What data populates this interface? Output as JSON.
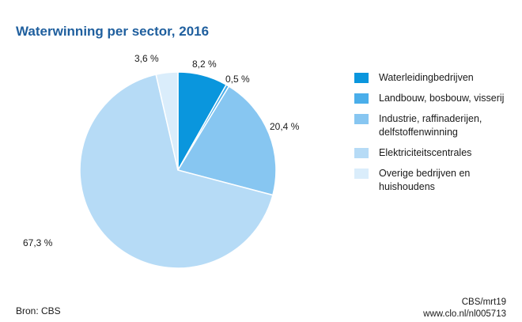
{
  "chart_data": {
    "type": "pie",
    "title": "Waterwinning per sector, 2016",
    "categories": [
      "Waterleidingbedrijven",
      "Landbouw, bosbouw, visserij",
      "Industrie, raffinaderijen, delfstoffenwinning",
      "Elektriciteitscentrales",
      "Overige bedrijven en huishoudens"
    ],
    "values": [
      8.2,
      0.5,
      20.4,
      67.3,
      3.6
    ],
    "value_labels": [
      "8,2 %",
      "0,5 %",
      "20,4 %",
      "67,3 %",
      "3,6 %"
    ],
    "colors": [
      "#0a96dd",
      "#4aaeea",
      "#87c6f1",
      "#b6dbf6",
      "#daedfb"
    ],
    "legend_placement": "right",
    "legend": [
      {
        "lines": [
          "Waterleidingbedrijven"
        ],
        "color": "#0a96dd"
      },
      {
        "lines": [
          "Landbouw, bosbouw, visserij"
        ],
        "color": "#4aaeea"
      },
      {
        "lines": [
          "Industrie, raffinaderijen,",
          "delfstoffenwinning"
        ],
        "color": "#87c6f1"
      },
      {
        "lines": [
          "Elektriciteitscentrales"
        ],
        "color": "#b6dbf6"
      },
      {
        "lines": [
          "Overige bedrijven en",
          "huishoudens"
        ],
        "color": "#daedfb"
      }
    ]
  },
  "footer": {
    "source": "Bron: CBS",
    "code": "CBS/mrt19",
    "url": "www.clo.nl/nl005713"
  }
}
